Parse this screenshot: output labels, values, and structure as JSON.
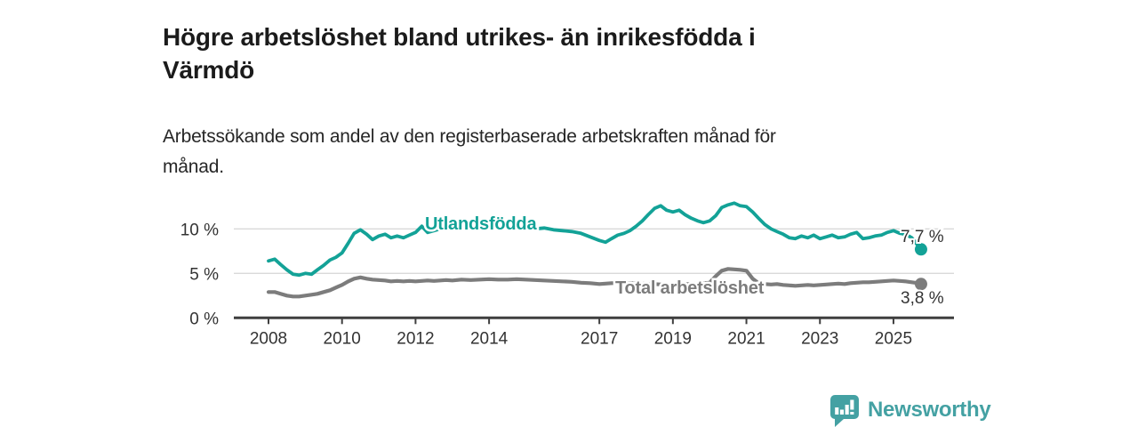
{
  "header": {
    "title_lines": [
      "Högre arbetslöshet bland utrikes- än inrikesfödda i",
      "Värmdö"
    ],
    "subtitle_lines": [
      "Arbetssökande som andel av den registerbaserade arbetskraften månad för",
      "månad."
    ]
  },
  "chart_data": {
    "type": "line",
    "title": "Högre arbetslöshet bland utrikes- än inrikesfödda i Värmdö",
    "subtitle": "Arbetssökande som andel av den registerbaserade arbetskraften månad för månad.",
    "xlabel": "",
    "ylabel": "",
    "ylim": [
      0,
      14
    ],
    "xlim": [
      2007.05,
      2026.65
    ],
    "grid": true,
    "legend_position": "inline-labels",
    "y_axis": {
      "ticks": [
        {
          "value": 0,
          "label": "0 %"
        },
        {
          "value": 5,
          "label": "5 %"
        },
        {
          "value": 10,
          "label": "10 %"
        }
      ]
    },
    "x_axis": {
      "tick_years": [
        2008,
        2010,
        2012,
        2014,
        2017,
        2019,
        2021,
        2023,
        2025
      ],
      "tick_labels": [
        "2008",
        "2010",
        "2012",
        "2014",
        "2017",
        "2019",
        "2021",
        "2023",
        "2025"
      ]
    },
    "x": [
      2008.0,
      2008.17,
      2008.33,
      2008.5,
      2008.67,
      2008.83,
      2009.0,
      2009.17,
      2009.33,
      2009.5,
      2009.67,
      2009.83,
      2010.0,
      2010.17,
      2010.33,
      2010.5,
      2010.67,
      2010.83,
      2011.0,
      2011.17,
      2011.33,
      2011.5,
      2011.67,
      2011.83,
      2012.0,
      2012.17,
      2012.33,
      2012.5,
      2012.67,
      2012.83,
      2013.0,
      2013.25,
      2013.5,
      2013.75,
      2014.0,
      2014.25,
      2014.5,
      2014.75,
      2015.0,
      2015.25,
      2015.5,
      2015.75,
      2016.0,
      2016.25,
      2016.5,
      2016.75,
      2017.0,
      2017.17,
      2017.33,
      2017.5,
      2017.67,
      2017.83,
      2018.0,
      2018.17,
      2018.33,
      2018.5,
      2018.67,
      2018.83,
      2019.0,
      2019.17,
      2019.33,
      2019.5,
      2019.67,
      2019.83,
      2020.0,
      2020.17,
      2020.33,
      2020.5,
      2020.67,
      2020.83,
      2021.0,
      2021.17,
      2021.33,
      2021.5,
      2021.67,
      2021.83,
      2022.0,
      2022.17,
      2022.33,
      2022.5,
      2022.67,
      2022.83,
      2023.0,
      2023.17,
      2023.33,
      2023.5,
      2023.67,
      2023.83,
      2024.0,
      2024.17,
      2024.33,
      2024.5,
      2024.67,
      2024.83,
      2025.0,
      2025.17,
      2025.33,
      2025.5,
      2025.67,
      2025.75
    ],
    "series": [
      {
        "name": "Utlandsfödda",
        "color": "#13a297",
        "end_label": "7,7 %",
        "end_value": 7.7,
        "values": [
          6.4,
          6.6,
          6.0,
          5.4,
          4.9,
          4.8,
          5.0,
          4.9,
          5.4,
          5.9,
          6.5,
          6.8,
          7.3,
          8.4,
          9.5,
          9.9,
          9.4,
          8.8,
          9.2,
          9.4,
          9.0,
          9.2,
          9.0,
          9.3,
          9.6,
          10.3,
          9.6,
          9.8,
          10.0,
          9.9,
          10.1,
          10.3,
          10.1,
          10.4,
          10.3,
          10.5,
          10.2,
          10.3,
          10.1,
          10.0,
          10.1,
          9.9,
          9.8,
          9.7,
          9.5,
          9.1,
          8.7,
          8.5,
          8.9,
          9.3,
          9.5,
          9.8,
          10.3,
          10.9,
          11.6,
          12.3,
          12.6,
          12.1,
          11.9,
          12.1,
          11.6,
          11.2,
          10.9,
          10.7,
          10.9,
          11.5,
          12.4,
          12.7,
          12.9,
          12.6,
          12.5,
          11.9,
          11.2,
          10.5,
          10.0,
          9.7,
          9.4,
          9.0,
          8.9,
          9.2,
          9.0,
          9.3,
          8.9,
          9.1,
          9.3,
          9.0,
          9.1,
          9.4,
          9.6,
          8.9,
          9.0,
          9.2,
          9.3,
          9.6,
          9.8,
          9.5,
          9.4,
          9.0,
          8.1,
          7.7
        ]
      },
      {
        "name": "Total arbetslöshet",
        "color": "#7c7c7c",
        "end_label": "3,8 %",
        "end_value": 3.8,
        "values": [
          2.9,
          2.9,
          2.7,
          2.5,
          2.4,
          2.4,
          2.5,
          2.6,
          2.7,
          2.9,
          3.1,
          3.4,
          3.7,
          4.1,
          4.4,
          4.55,
          4.4,
          4.3,
          4.25,
          4.2,
          4.1,
          4.15,
          4.1,
          4.15,
          4.1,
          4.15,
          4.2,
          4.15,
          4.2,
          4.25,
          4.2,
          4.3,
          4.25,
          4.3,
          4.35,
          4.3,
          4.3,
          4.35,
          4.3,
          4.25,
          4.2,
          4.15,
          4.1,
          4.05,
          3.95,
          3.9,
          3.8,
          3.85,
          3.9,
          3.9,
          3.85,
          3.9,
          3.9,
          3.85,
          3.8,
          3.8,
          3.75,
          3.7,
          3.7,
          3.75,
          3.8,
          3.8,
          3.85,
          3.9,
          3.95,
          4.7,
          5.3,
          5.5,
          5.45,
          5.4,
          5.3,
          4.4,
          3.9,
          3.8,
          3.75,
          3.8,
          3.7,
          3.65,
          3.6,
          3.65,
          3.7,
          3.65,
          3.7,
          3.75,
          3.8,
          3.85,
          3.8,
          3.9,
          3.95,
          4.0,
          4.0,
          4.05,
          4.1,
          4.15,
          4.2,
          4.15,
          4.1,
          4.0,
          3.9,
          3.8
        ]
      }
    ],
    "colors": {
      "grid": "#d9d9d9",
      "axis": "#3f3f3f",
      "tick_text": "#333333",
      "end_label_text": "#333333"
    }
  },
  "branding": {
    "logo_text": "Newsworthy",
    "logo_color": "#44a1a3",
    "logo_icon": "bar-chart-speech-bubble"
  }
}
